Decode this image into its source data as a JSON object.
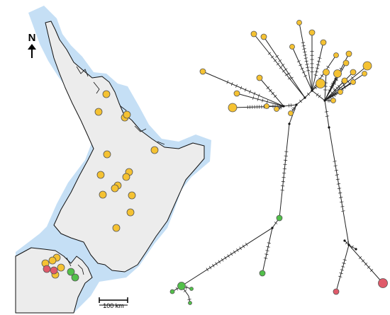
{
  "map": {
    "north_label": "N",
    "scale_label": "100 km",
    "land_color": "#ececec",
    "shelf_color": "#c5dff5",
    "coast_color": "#111111"
  },
  "legend_colors": {
    "yellow": "#f5c232",
    "red": "#e05a6a",
    "green": "#52c04a"
  },
  "site_counts": {
    "yellow": 20,
    "red": 2,
    "green": 2
  },
  "network_counts": {
    "yellow_haplotypes": 26,
    "green_haplotypes": 6,
    "red_haplotypes": 2
  }
}
